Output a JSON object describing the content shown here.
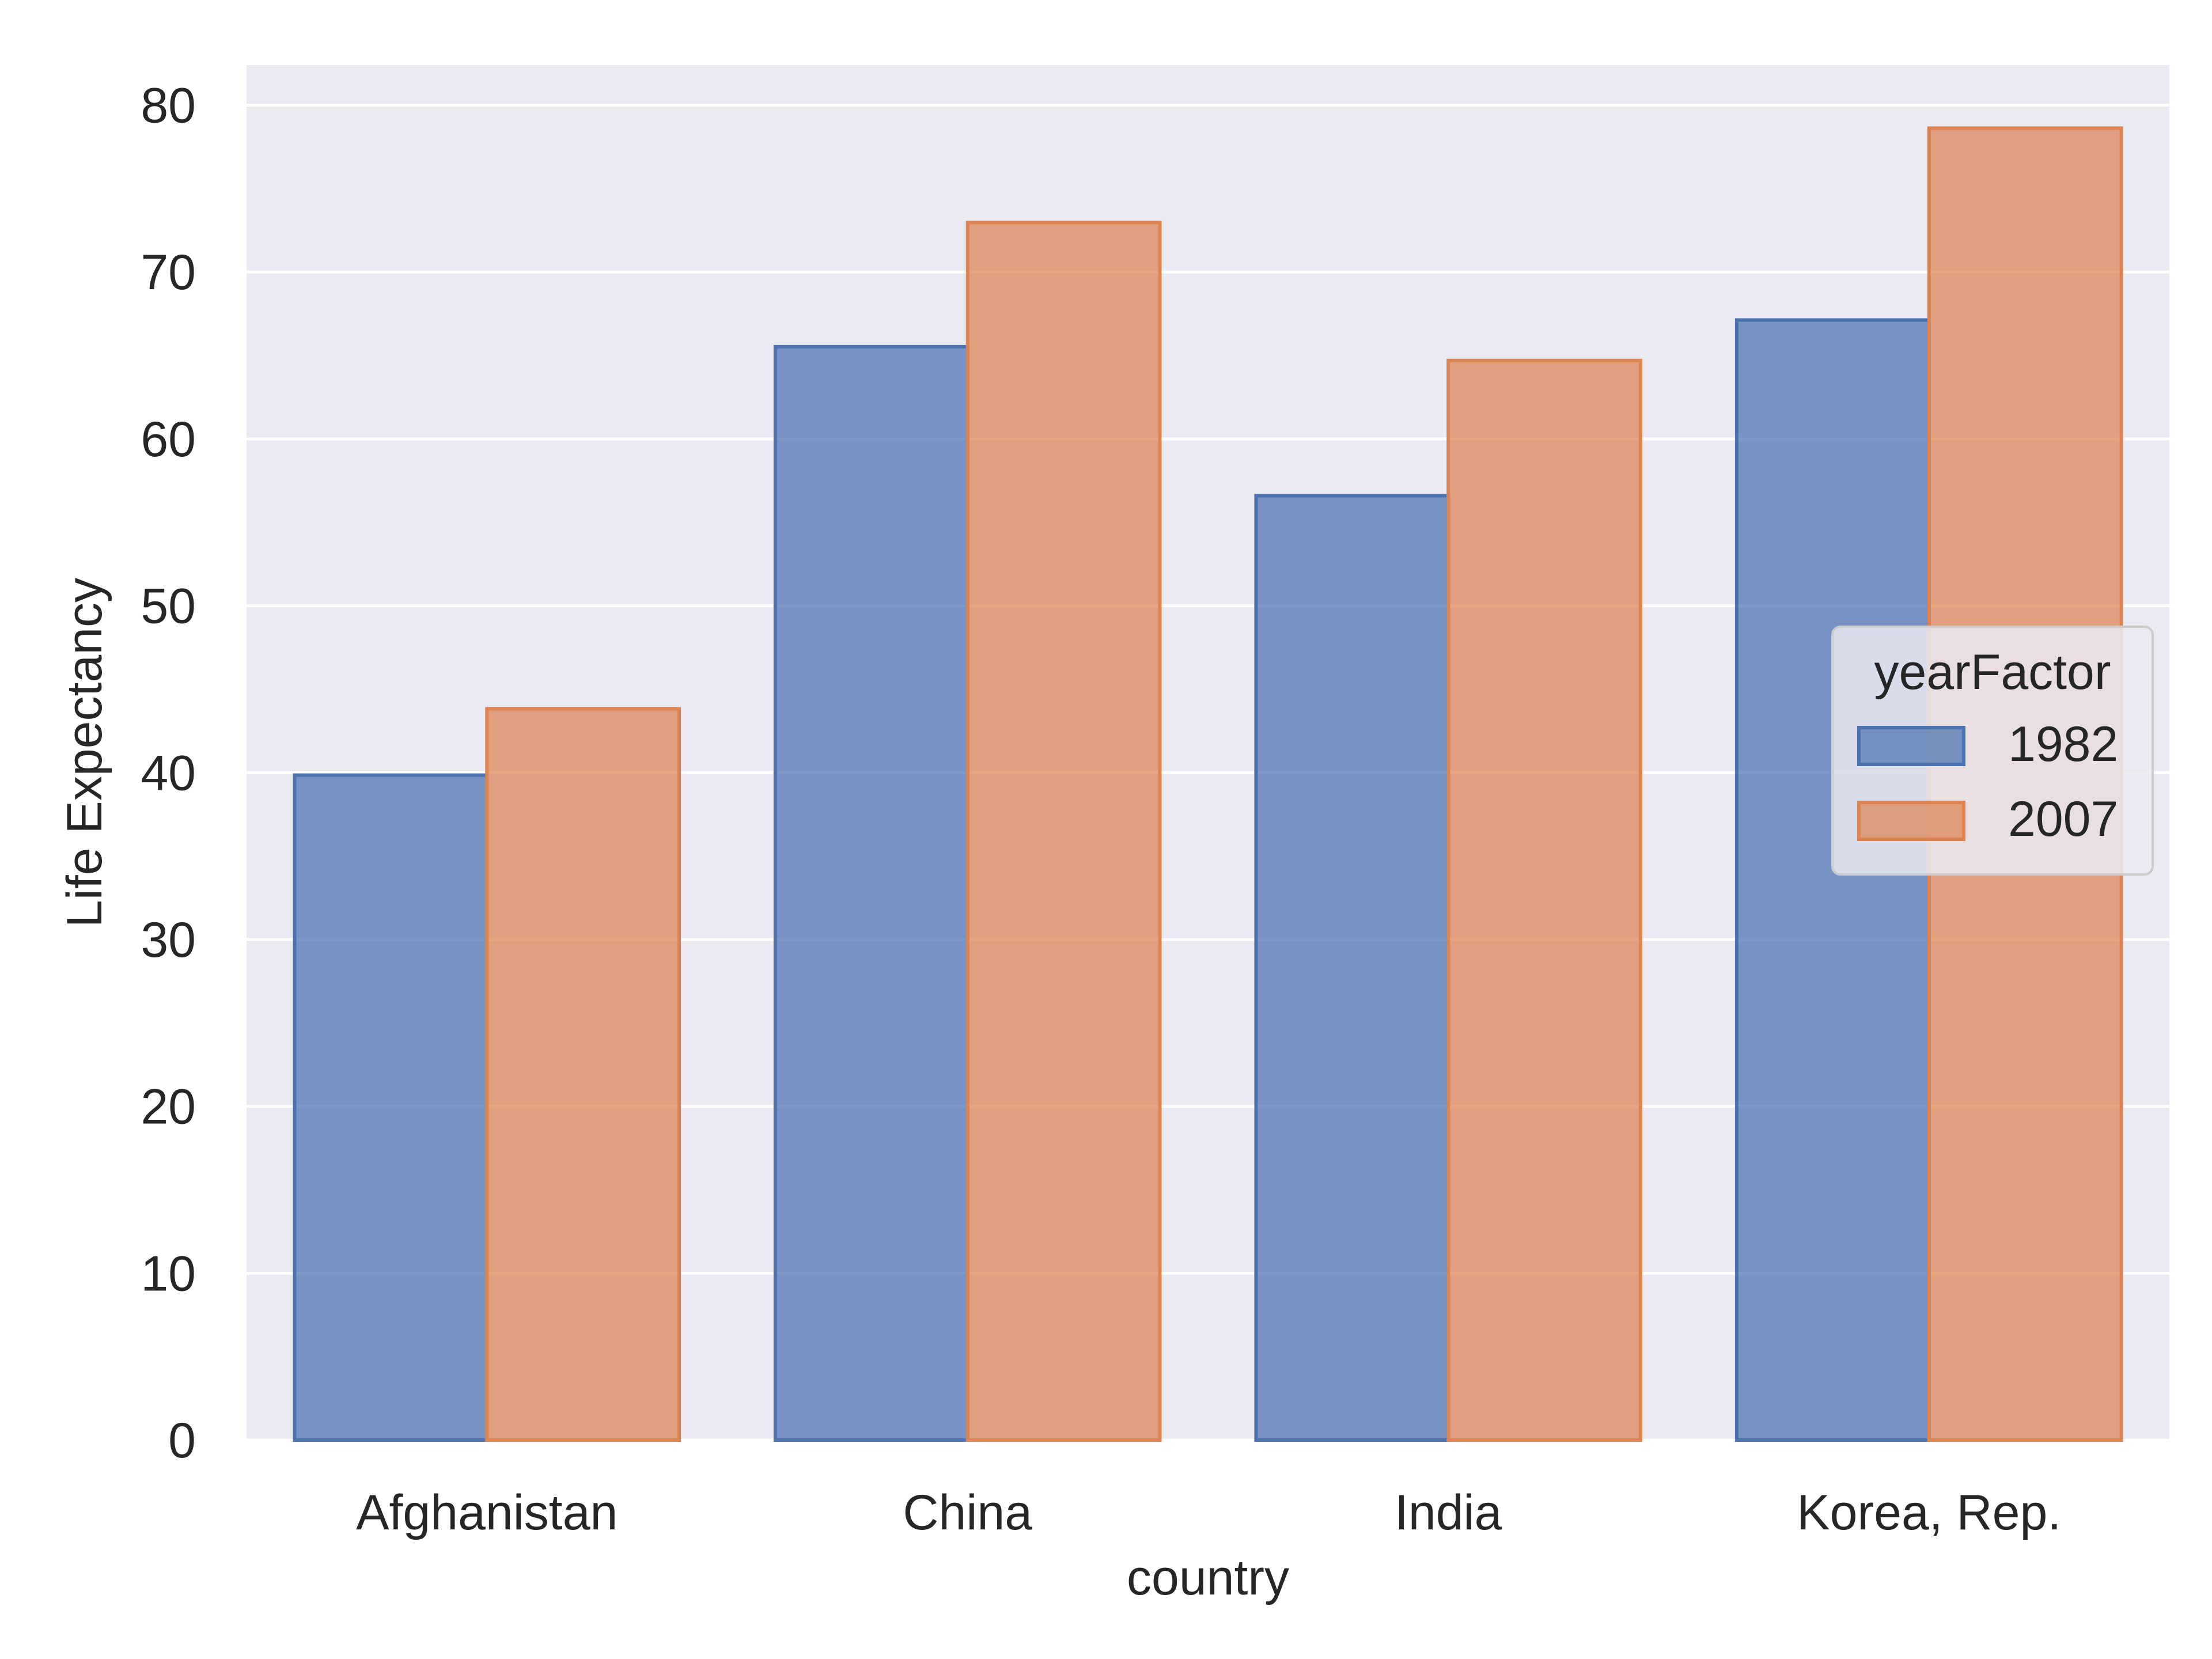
{
  "chart_data": {
    "type": "bar",
    "title": "",
    "xlabel": "country",
    "ylabel": "Life Expectancy",
    "categories": [
      "Afghanistan",
      "China",
      "India",
      "Korea, Rep."
    ],
    "series": [
      {
        "name": "1982",
        "values": [
          39.85,
          65.525,
          56.596,
          67.123
        ],
        "color": "#4c72b0"
      },
      {
        "name": "2007",
        "values": [
          43.828,
          72.961,
          64.698,
          78.623
        ],
        "color": "#dd8452"
      }
    ],
    "ylim": [
      0,
      82.4
    ],
    "yticks": [
      0,
      10,
      20,
      30,
      40,
      50,
      60,
      70,
      80
    ],
    "grid": true,
    "legend": {
      "title": "yearFactor",
      "position": "right"
    },
    "colors": {
      "background": "#eaeaf2",
      "grid": "#ffffff",
      "text": "#262626"
    }
  }
}
